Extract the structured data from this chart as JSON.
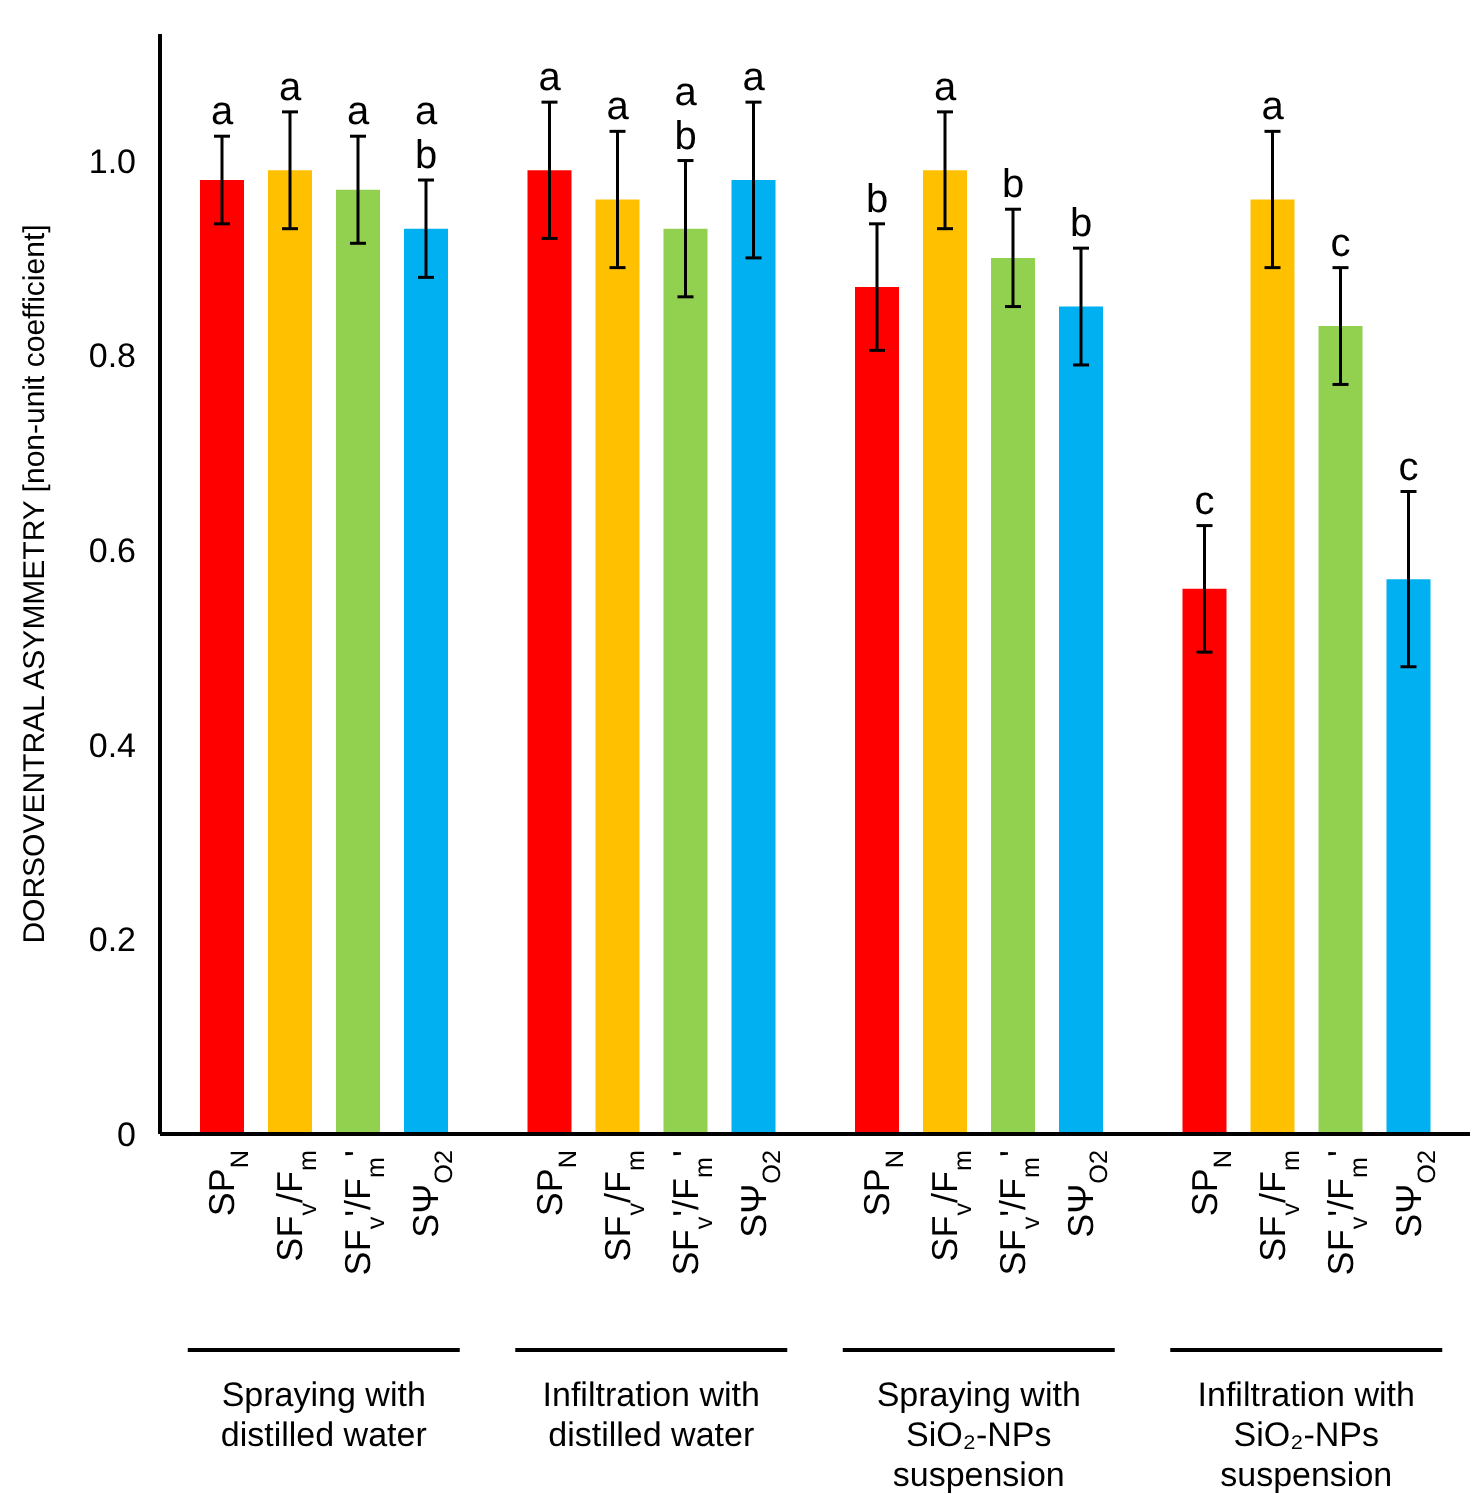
{
  "chart_data": {
    "type": "bar",
    "ylabel": "DORSOVENTRAL ASYMMETRY [non-unit coefficient]",
    "categories": [
      "Spraying with distilled water",
      "Infiltration with distilled water",
      "Spraying with SiO₂-NPs suspension",
      "Infiltration with SiO₂-NPs suspension"
    ],
    "series": [
      {
        "name": "SP$_{N}$",
        "color": "#ff0000",
        "values": [
          0.98,
          0.99,
          0.87,
          0.56
        ],
        "errors": [
          0.045,
          0.07,
          0.065,
          0.065
        ]
      },
      {
        "name": "SF$_{v}$/F$_{m}$",
        "color": "#ffc000",
        "values": [
          0.99,
          0.96,
          0.99,
          0.96
        ],
        "errors": [
          0.06,
          0.07,
          0.06,
          0.07
        ]
      },
      {
        "name": "SF$_{v}$'/F$_{m}$'",
        "color": "#92d050",
        "values": [
          0.97,
          0.93,
          0.9,
          0.83
        ],
        "errors": [
          0.055,
          0.07,
          0.05,
          0.06
        ]
      },
      {
        "name": "SΨ$_{O2}$",
        "color": "#00b0f0",
        "values": [
          0.93,
          0.98,
          0.85,
          0.57
        ],
        "errors": [
          0.05,
          0.08,
          0.06,
          0.09
        ]
      }
    ],
    "annotations": [
      "a",
      "a",
      "a",
      "ab",
      "a",
      "a",
      "ab",
      "a",
      "b",
      "a",
      "b",
      "b",
      "c",
      "a",
      "c",
      "c"
    ],
    "ylim": [
      0,
      1.13
    ],
    "yticks": [
      0,
      0.2,
      0.4,
      0.6,
      0.8,
      {
        "value": 1,
        "label": "1.0"
      }
    ],
    "grid": false,
    "legend": false
  }
}
